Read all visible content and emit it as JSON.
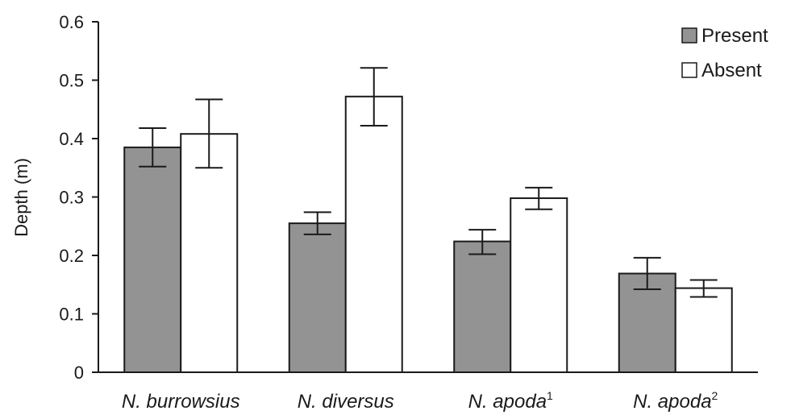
{
  "chart_data": {
    "type": "bar",
    "ylabel": "Depth (m)",
    "ylim": [
      0,
      0.6
    ],
    "yticks": [
      "0",
      "0.1",
      "0.2",
      "0.3",
      "0.4",
      "0.5",
      "0.6"
    ],
    "categories": [
      {
        "name": "N. burrowsius",
        "sup": ""
      },
      {
        "name": "N. diversus",
        "sup": ""
      },
      {
        "name": "N. apoda",
        "sup": "1"
      },
      {
        "name": "N. apoda",
        "sup": "2"
      }
    ],
    "series": [
      {
        "name": "Present",
        "color": "#939393",
        "values": [
          0.385,
          0.255,
          0.224,
          0.169
        ],
        "err_low": [
          0.352,
          0.236,
          0.202,
          0.142
        ],
        "err_high": [
          0.418,
          0.274,
          0.244,
          0.196
        ]
      },
      {
        "name": "Absent",
        "color": "#ffffff",
        "values": [
          0.408,
          0.472,
          0.298,
          0.144
        ],
        "err_low": [
          0.35,
          0.422,
          0.279,
          0.129
        ],
        "err_high": [
          0.467,
          0.521,
          0.316,
          0.158
        ]
      }
    ],
    "legend_position": "top-right",
    "grid": false
  }
}
